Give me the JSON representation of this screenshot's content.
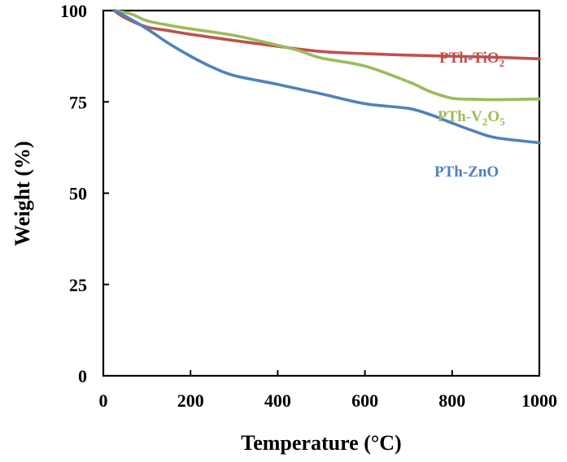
{
  "chart_data": {
    "type": "line",
    "xlabel": "Temperature (°C)",
    "ylabel": "Weight (%)",
    "xlim": [
      0,
      1000
    ],
    "ylim": [
      0,
      100
    ],
    "xticks": [
      0,
      200,
      400,
      600,
      800,
      1000
    ],
    "yticks": [
      0,
      25,
      50,
      75,
      100
    ],
    "grid": false,
    "legend": "inline labels at right end of each line",
    "series": [
      {
        "name": "PTh-TiO",
        "label_sub": "2",
        "color": "#c0504d",
        "points": [
          [
            25,
            100
          ],
          [
            50,
            98
          ],
          [
            100,
            95.5
          ],
          [
            150,
            94.5
          ],
          [
            200,
            93.5
          ],
          [
            300,
            91.8
          ],
          [
            400,
            90.2
          ],
          [
            500,
            88.8
          ],
          [
            600,
            88.2
          ],
          [
            700,
            87.8
          ],
          [
            800,
            87.5
          ],
          [
            900,
            87.2
          ],
          [
            1000,
            86.8
          ]
        ]
      },
      {
        "name": "PTh-V",
        "label_sub": "2",
        "label_mid": "O",
        "label_sub2": "5",
        "color": "#9bbb59",
        "points": [
          [
            25,
            100
          ],
          [
            50,
            99.5
          ],
          [
            70,
            98.8
          ],
          [
            100,
            97.2
          ],
          [
            150,
            96
          ],
          [
            200,
            95
          ],
          [
            300,
            93.2
          ],
          [
            400,
            90.5
          ],
          [
            450,
            89
          ],
          [
            500,
            87
          ],
          [
            600,
            84.8
          ],
          [
            700,
            80.5
          ],
          [
            750,
            77.8
          ],
          [
            800,
            76
          ],
          [
            850,
            75.7
          ],
          [
            900,
            75.6
          ],
          [
            1000,
            75.8
          ]
        ]
      },
      {
        "name": "PTh-ZnO",
        "color": "#4f81bd",
        "points": [
          [
            25,
            100
          ],
          [
            50,
            98.5
          ],
          [
            100,
            95
          ],
          [
            150,
            91
          ],
          [
            200,
            87.5
          ],
          [
            250,
            84.5
          ],
          [
            300,
            82.2
          ],
          [
            400,
            79.8
          ],
          [
            500,
            77.2
          ],
          [
            600,
            74.5
          ],
          [
            700,
            73.2
          ],
          [
            750,
            71.5
          ],
          [
            800,
            69.2
          ],
          [
            850,
            67
          ],
          [
            900,
            65.2
          ],
          [
            1000,
            63.8
          ]
        ]
      }
    ]
  }
}
